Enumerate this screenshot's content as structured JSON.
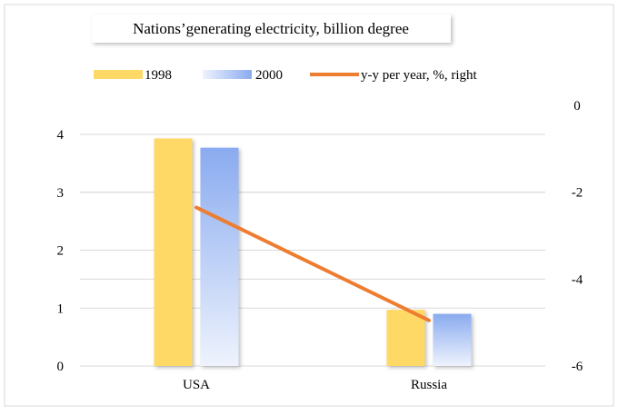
{
  "chart_data": {
    "type": "bar",
    "title": "Nations’generating electricity, billion degree",
    "categories": [
      "USA",
      "Russia"
    ],
    "series": [
      {
        "name": "1998",
        "type": "bar",
        "axis": "left",
        "values": [
          3.93,
          0.97
        ]
      },
      {
        "name": "2000",
        "type": "bar",
        "axis": "left",
        "values": [
          3.77,
          0.9
        ]
      },
      {
        "name": "y-y per year, %, right",
        "type": "line",
        "axis": "right",
        "values": [
          -2.35,
          -4.95
        ]
      }
    ],
    "y_left": {
      "min": 0,
      "max": 4,
      "ticks": [
        "0",
        "1",
        "2",
        "3",
        "4"
      ]
    },
    "y_right": {
      "min": -6,
      "max": 0,
      "ticks": [
        "0",
        "-2",
        "-4",
        "-6"
      ]
    },
    "grid": true,
    "legend_position": "top",
    "colors": {
      "bar1998": "#ffd966",
      "bar2000": "#8eaef0",
      "line": "#ed7d31",
      "grid": "#d9d9d9"
    }
  }
}
